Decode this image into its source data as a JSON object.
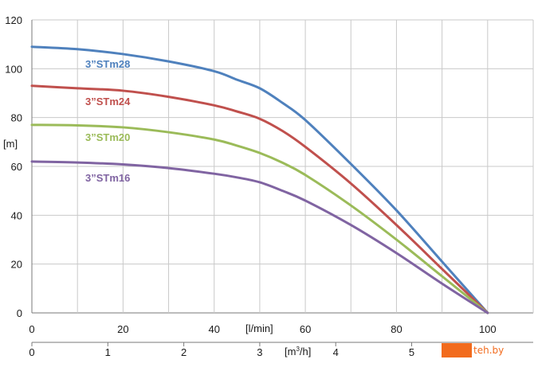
{
  "chart_data": {
    "type": "line",
    "title": "",
    "ylabel": "[m]",
    "xlabel": "[l/min]",
    "x2label_base": "[m",
    "x2label_sup": "3",
    "x2label_tail": "/h]",
    "ylim": [
      0,
      120
    ],
    "xlim": [
      0,
      110
    ],
    "yticks": [
      "0",
      "20",
      "40",
      "60",
      "80",
      "100",
      "120"
    ],
    "xticks": [
      "0",
      "20",
      "40",
      "60",
      "80",
      "100"
    ],
    "x2ticks": [
      "0",
      "1",
      "2",
      "3",
      "4",
      "5"
    ],
    "x2_to_x_factor": 16.6667,
    "grid": true,
    "series": [
      {
        "name": "3”STm28",
        "color": "#4f81bd",
        "x": [
          0,
          10,
          20,
          30,
          40,
          45,
          50,
          55,
          60,
          70,
          80,
          90,
          100
        ],
        "y": [
          109,
          108,
          106,
          103,
          99,
          95.5,
          92,
          86,
          79,
          61,
          42,
          21,
          0
        ]
      },
      {
        "name": "3”STm24",
        "color": "#c0504d",
        "x": [
          0,
          10,
          20,
          30,
          40,
          45,
          50,
          55,
          60,
          70,
          80,
          90,
          100
        ],
        "y": [
          93,
          92,
          91,
          88.5,
          85,
          82.5,
          79.5,
          74.5,
          68,
          53,
          36,
          18,
          0
        ]
      },
      {
        "name": "3”STm20",
        "color": "#9bbb59",
        "x": [
          0,
          10,
          20,
          30,
          40,
          45,
          50,
          55,
          60,
          70,
          80,
          90,
          100
        ],
        "y": [
          77,
          76.8,
          76,
          74,
          71,
          68.5,
          65.5,
          61.5,
          56.5,
          44,
          30,
          15,
          0
        ]
      },
      {
        "name": "3”STm16",
        "color": "#8064a2",
        "x": [
          0,
          10,
          20,
          30,
          40,
          45,
          50,
          55,
          60,
          70,
          80,
          90,
          100
        ],
        "y": [
          62,
          61.6,
          60.8,
          59.3,
          57,
          55.5,
          53.5,
          50,
          46,
          36,
          24.5,
          12,
          0
        ]
      }
    ]
  },
  "watermark": {
    "text": "teh.by"
  }
}
